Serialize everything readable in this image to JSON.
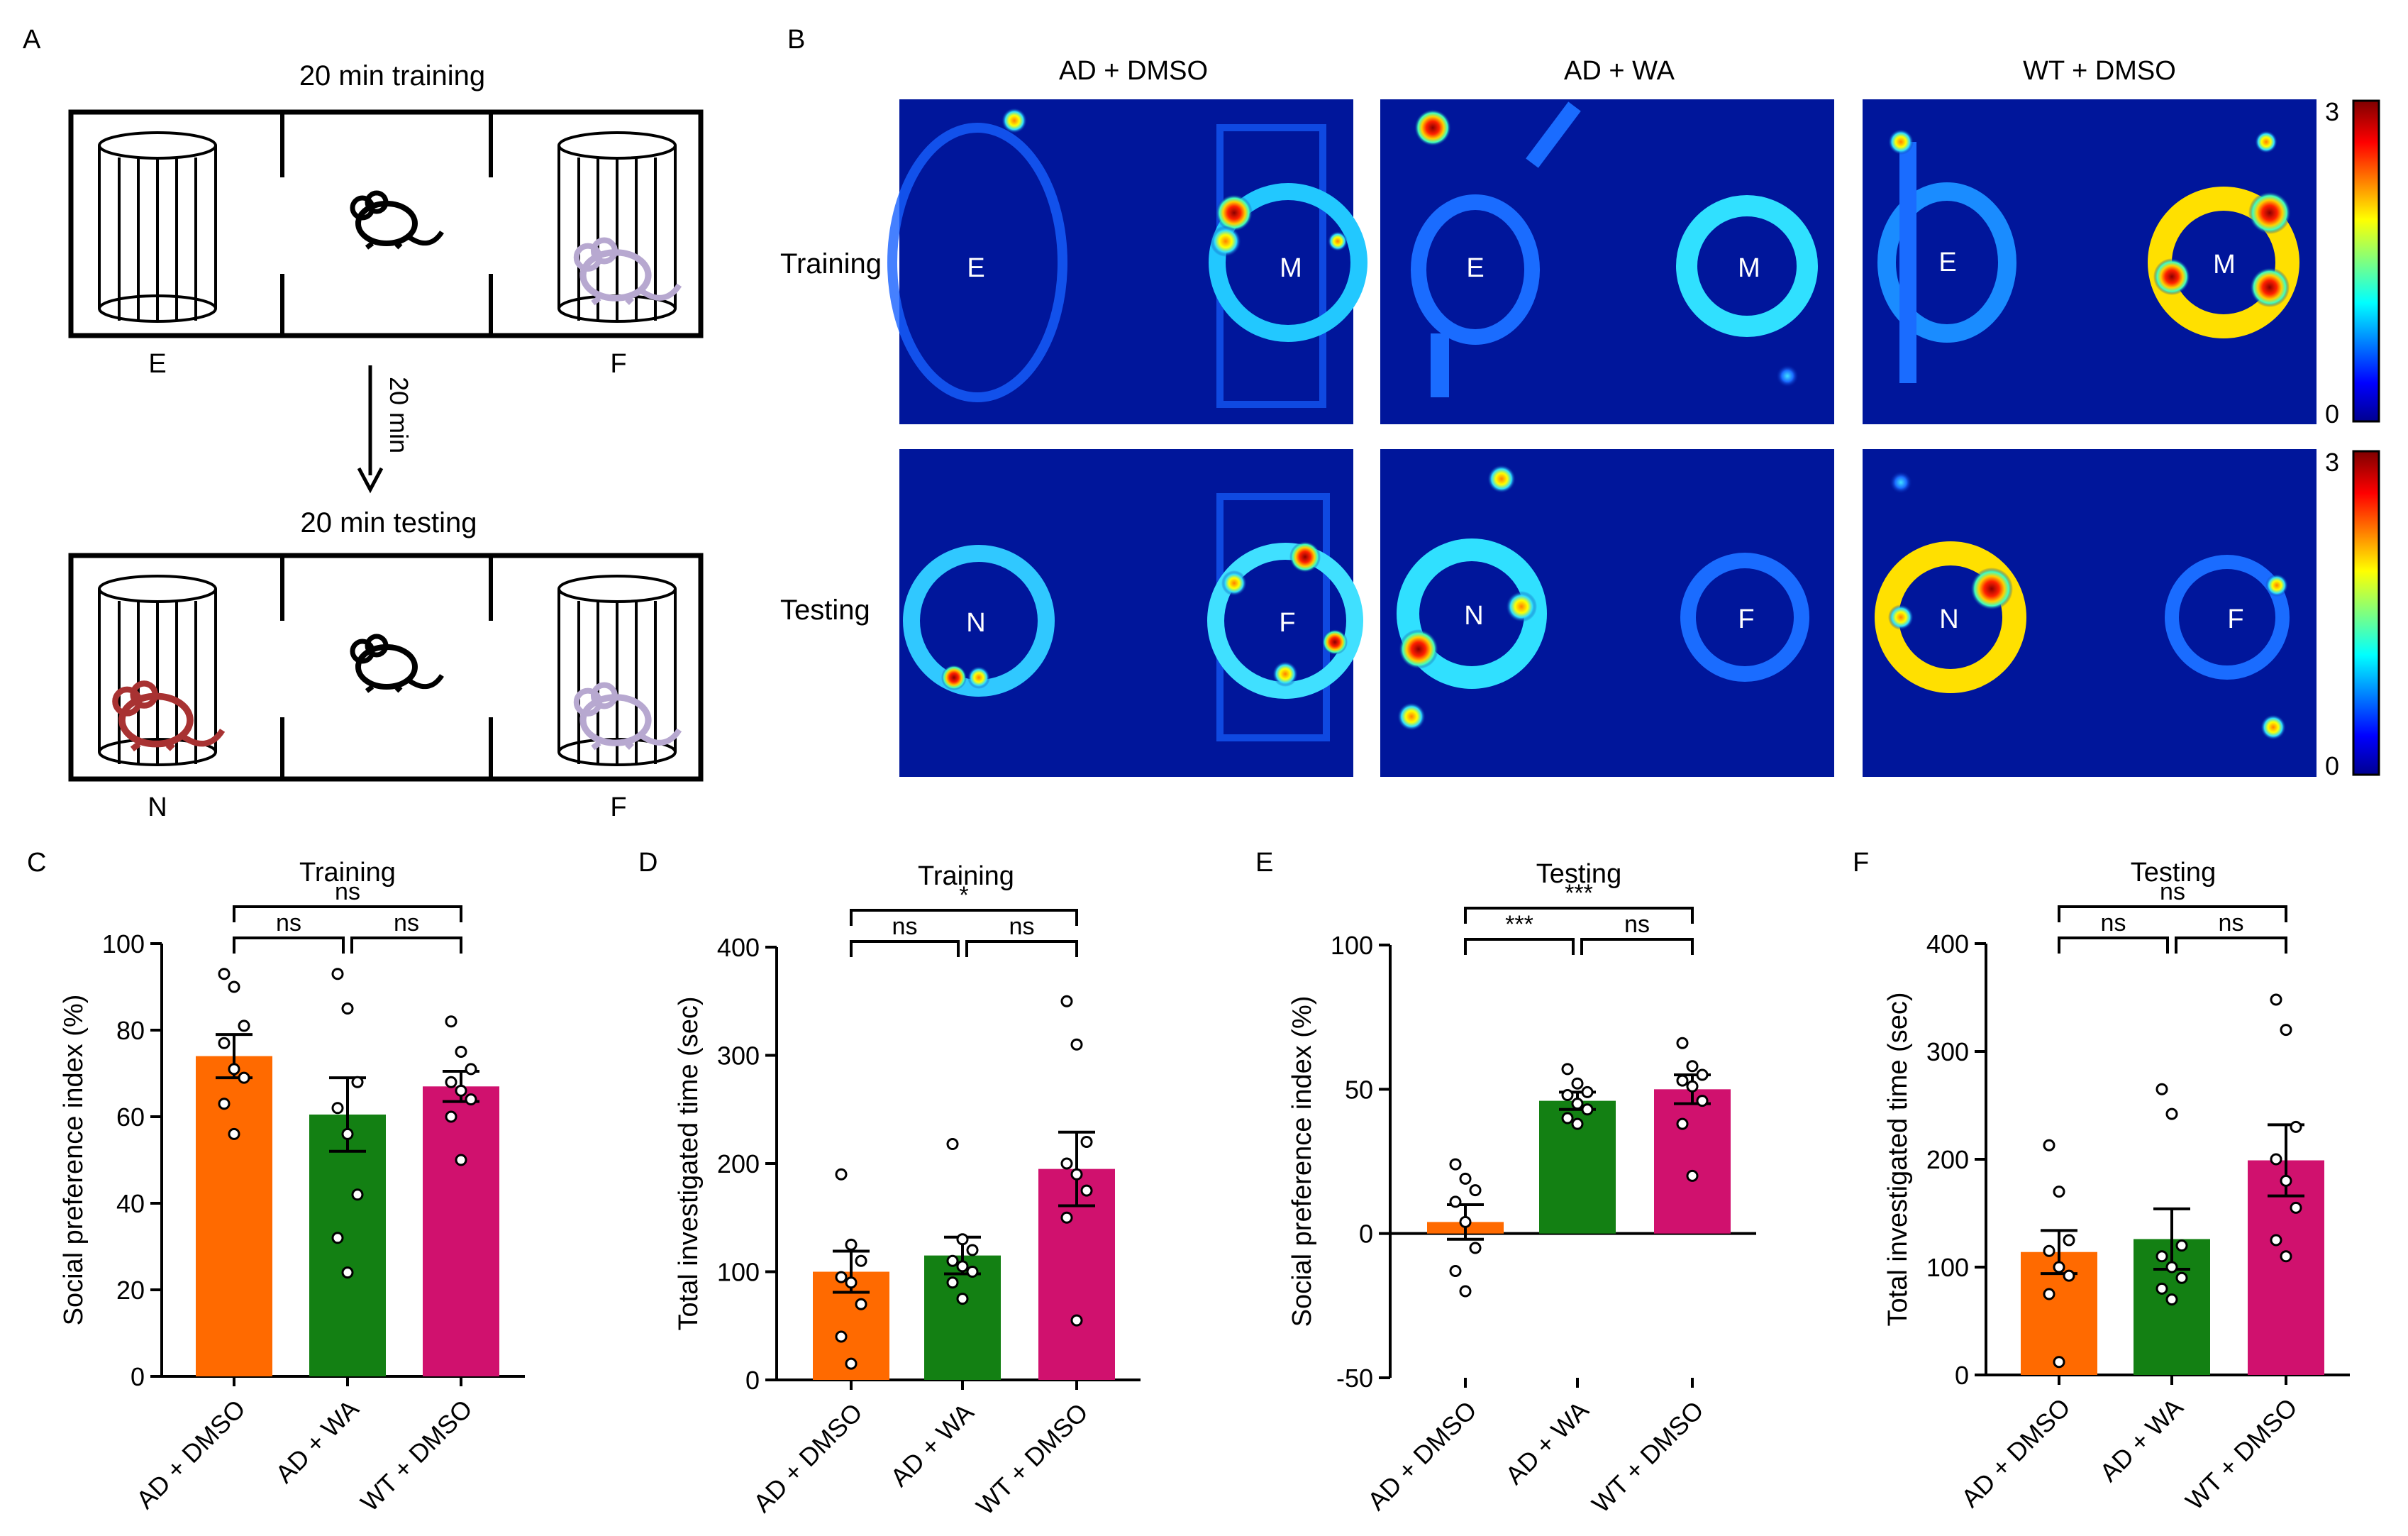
{
  "panel_letters": {
    "A": "A",
    "B": "B",
    "C": "C",
    "D": "D",
    "E": "E",
    "F": "F"
  },
  "schematic": {
    "training_title": "20 min training",
    "testing_title": "20 min testing",
    "interval_label": "20 min",
    "training_left_label": "E",
    "training_right_label": "F",
    "testing_left_label": "N",
    "testing_right_label": "F"
  },
  "heatmaps": {
    "column_titles": [
      "AD + DMSO",
      "AD + WA",
      "WT + DMSO"
    ],
    "row_labels": [
      "Training",
      "Testing"
    ],
    "scale_max": "3",
    "scale_min": "0",
    "training_labels": [
      [
        "E",
        "M"
      ],
      [
        "E",
        "M"
      ],
      [
        "E",
        "M"
      ]
    ],
    "testing_labels": [
      [
        "N",
        "F"
      ],
      [
        "N",
        "F"
      ],
      [
        "N",
        "F"
      ]
    ]
  },
  "colors": {
    "orange": "#ff6a00",
    "green": "#138013",
    "magenta": "#d0116e",
    "heat_bg": "#00169b"
  },
  "chart_data": [
    {
      "panel": "C",
      "type": "bar",
      "title": "Training",
      "ylabel": "Social preference index (%)",
      "ylim": [
        0,
        100
      ],
      "yticks": [
        0,
        20,
        40,
        60,
        80,
        100
      ],
      "ytick_labels": [
        "0",
        "20",
        "40",
        "60",
        "80",
        "100"
      ],
      "categories": [
        "AD + DMSO",
        "AD + WA",
        "WT + DMSO"
      ],
      "values": [
        74,
        60.5,
        67
      ],
      "sem": [
        5,
        8.5,
        3.5
      ],
      "points": [
        [
          93,
          90,
          81,
          77,
          71,
          69,
          63,
          56
        ],
        [
          93,
          85,
          68,
          62,
          56,
          42,
          32,
          24
        ],
        [
          82,
          75,
          71,
          68,
          66,
          64,
          60,
          50
        ]
      ],
      "brackets": [
        {
          "from": 0,
          "to": 1,
          "label": "ns",
          "level": 1
        },
        {
          "from": 1,
          "to": 2,
          "label": "ns",
          "level": 1
        },
        {
          "from": 0,
          "to": 2,
          "label": "ns",
          "level": 2
        }
      ]
    },
    {
      "panel": "D",
      "type": "bar",
      "title": "Training",
      "ylabel": "Total investigated time (sec)",
      "ylim": [
        0,
        400
      ],
      "yticks": [
        0,
        100,
        200,
        300,
        400
      ],
      "ytick_labels": [
        "0",
        "100",
        "200",
        "300",
        "400"
      ],
      "categories": [
        "AD + DMSO",
        "AD + WA",
        "WT + DMSO"
      ],
      "values": [
        100,
        115,
        195
      ],
      "sem": [
        19,
        17,
        34
      ],
      "points": [
        [
          190,
          125,
          110,
          95,
          90,
          70,
          40,
          15
        ],
        [
          218,
          130,
          120,
          110,
          105,
          100,
          90,
          75
        ],
        [
          350,
          310,
          220,
          200,
          190,
          175,
          150,
          55
        ]
      ],
      "brackets": [
        {
          "from": 0,
          "to": 1,
          "label": "ns",
          "level": 1
        },
        {
          "from": 1,
          "to": 2,
          "label": "ns",
          "level": 1
        },
        {
          "from": 0,
          "to": 2,
          "label": "*",
          "level": 2
        }
      ]
    },
    {
      "panel": "E",
      "type": "bar",
      "title": "Testing",
      "ylabel": "Social preference index (%)",
      "ylim": [
        -50,
        100
      ],
      "yticks": [
        -50,
        0,
        50,
        100
      ],
      "ytick_labels": [
        "-50",
        "0",
        "50",
        "100"
      ],
      "categories": [
        "AD + DMSO",
        "AD + WA",
        "WT + DMSO"
      ],
      "values": [
        4,
        46,
        50
      ],
      "sem": [
        6,
        3,
        5
      ],
      "points": [
        [
          24,
          19,
          15,
          11,
          4,
          -5,
          -13,
          -20
        ],
        [
          57,
          52,
          49,
          48,
          45,
          43,
          40,
          38
        ],
        [
          66,
          58,
          55,
          53,
          51,
          46,
          38,
          20
        ]
      ],
      "brackets": [
        {
          "from": 0,
          "to": 1,
          "label": "***",
          "level": 1
        },
        {
          "from": 1,
          "to": 2,
          "label": "ns",
          "level": 1
        },
        {
          "from": 0,
          "to": 2,
          "label": "***",
          "level": 2
        }
      ]
    },
    {
      "panel": "F",
      "type": "bar",
      "title": "Testing",
      "ylabel": "Total investigated time (sec)",
      "ylim": [
        0,
        400
      ],
      "yticks": [
        0,
        100,
        200,
        300,
        400
      ],
      "ytick_labels": [
        "0",
        "100",
        "200",
        "300",
        "400"
      ],
      "categories": [
        "AD + DMSO",
        "AD + WA",
        "WT + DMSO"
      ],
      "values": [
        114,
        126,
        199
      ],
      "sem": [
        20,
        28,
        33
      ],
      "points": [
        [
          213,
          170,
          125,
          115,
          100,
          92,
          75,
          12
        ],
        [
          265,
          242,
          120,
          110,
          100,
          90,
          80,
          70
        ],
        [
          348,
          320,
          230,
          200,
          180,
          155,
          125,
          110
        ]
      ],
      "brackets": [
        {
          "from": 0,
          "to": 1,
          "label": "ns",
          "level": 1
        },
        {
          "from": 1,
          "to": 2,
          "label": "ns",
          "level": 1
        },
        {
          "from": 0,
          "to": 2,
          "label": "ns",
          "level": 2
        }
      ]
    }
  ]
}
